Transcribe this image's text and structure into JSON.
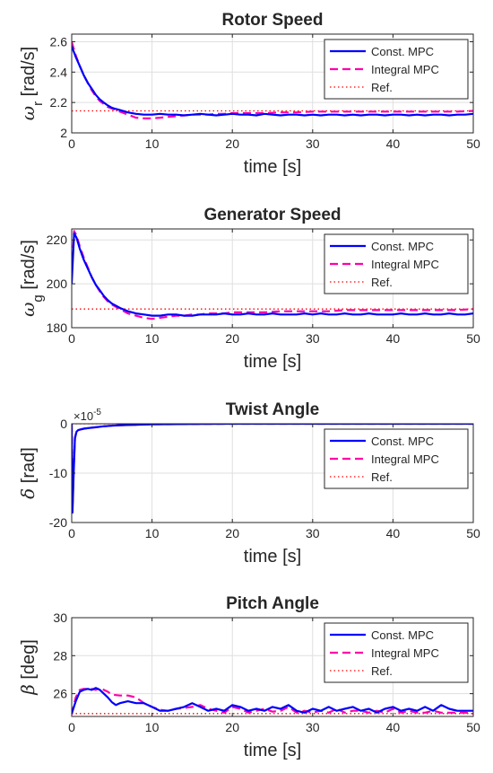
{
  "figure": {
    "background": "#ffffff"
  },
  "chart_data": [
    {
      "type": "line",
      "title": "Rotor Speed",
      "ylabel": "ω_r [rad/s]",
      "ylabel_main": "ω",
      "ylabel_sub": "r",
      "ylabel_unit": "[rad/s]",
      "xlabel": "time [s]",
      "xlim": [
        0,
        50
      ],
      "ylim": [
        2,
        2.65
      ],
      "xticks": [
        0,
        10,
        20,
        30,
        40,
        50
      ],
      "yticks": [
        2,
        2.2,
        2.4,
        2.6
      ],
      "ytick_labels": [
        "2",
        "2.2",
        "2.4",
        "2.6"
      ],
      "grid": true,
      "legend_position": "top-right",
      "series": [
        {
          "name": "Const. MPC",
          "color": "#0000ff",
          "style": "solid",
          "x": [
            0,
            0.5,
            1,
            1.5,
            2,
            2.5,
            3,
            3.5,
            4,
            4.5,
            5,
            6,
            7,
            8,
            9,
            10,
            11,
            12,
            13,
            14,
            15,
            16,
            17,
            18,
            19,
            20,
            21,
            22,
            23,
            24,
            25,
            26,
            27,
            28,
            29,
            30,
            31,
            32,
            33,
            34,
            35,
            36,
            37,
            38,
            39,
            40,
            41,
            42,
            43,
            44,
            45,
            46,
            47,
            48,
            49,
            50
          ],
          "y": [
            2.57,
            2.5,
            2.44,
            2.38,
            2.33,
            2.29,
            2.25,
            2.22,
            2.2,
            2.18,
            2.165,
            2.15,
            2.135,
            2.125,
            2.12,
            2.12,
            2.125,
            2.12,
            2.12,
            2.115,
            2.12,
            2.125,
            2.12,
            2.115,
            2.12,
            2.125,
            2.12,
            2.12,
            2.115,
            2.125,
            2.12,
            2.115,
            2.12,
            2.12,
            2.115,
            2.12,
            2.115,
            2.12,
            2.12,
            2.115,
            2.12,
            2.115,
            2.12,
            2.12,
            2.115,
            2.12,
            2.12,
            2.115,
            2.12,
            2.115,
            2.12,
            2.12,
            2.115,
            2.12,
            2.12,
            2.125
          ]
        },
        {
          "name": "Integral MPC",
          "color": "#ff00aa",
          "style": "dashed",
          "x": [
            0,
            0.5,
            1,
            1.5,
            2,
            2.5,
            3,
            3.5,
            4,
            4.5,
            5,
            6,
            7,
            8,
            9,
            10,
            11,
            12,
            13,
            14,
            15,
            16,
            17,
            18,
            19,
            20,
            22,
            24,
            26,
            28,
            30,
            32,
            34,
            36,
            38,
            40,
            42,
            44,
            46,
            48,
            50
          ],
          "y": [
            2.6,
            2.51,
            2.44,
            2.38,
            2.33,
            2.28,
            2.24,
            2.21,
            2.19,
            2.17,
            2.16,
            2.14,
            2.12,
            2.1,
            2.095,
            2.095,
            2.1,
            2.105,
            2.11,
            2.115,
            2.12,
            2.12,
            2.12,
            2.125,
            2.125,
            2.13,
            2.13,
            2.13,
            2.135,
            2.135,
            2.14,
            2.14,
            2.14,
            2.14,
            2.14,
            2.14,
            2.14,
            2.14,
            2.14,
            2.14,
            2.145
          ]
        },
        {
          "name": "Ref.",
          "color": "#ff0000",
          "style": "dotted",
          "x": [
            0,
            50
          ],
          "y": [
            2.145,
            2.145
          ]
        }
      ]
    },
    {
      "type": "line",
      "title": "Generator Speed",
      "ylabel": "ω_g [rad/s]",
      "ylabel_main": "ω",
      "ylabel_sub": "g",
      "ylabel_unit": "[rad/s]",
      "xlabel": "time [s]",
      "xlim": [
        0,
        50
      ],
      "ylim": [
        180,
        225
      ],
      "xticks": [
        0,
        10,
        20,
        30,
        40,
        50
      ],
      "yticks": [
        180,
        200,
        220
      ],
      "ytick_labels": [
        "180",
        "200",
        "220"
      ],
      "grid": true,
      "legend_position": "top-right",
      "series": [
        {
          "name": "Const. MPC",
          "color": "#0000ff",
          "style": "solid",
          "x": [
            0,
            0.3,
            0.6,
            1,
            1.5,
            2,
            2.5,
            3,
            3.5,
            4,
            4.5,
            5,
            6,
            7,
            8,
            9,
            10,
            11,
            12,
            13,
            14,
            15,
            16,
            17,
            18,
            19,
            20,
            21,
            22,
            23,
            24,
            25,
            26,
            27,
            28,
            29,
            30,
            31,
            32,
            33,
            34,
            35,
            36,
            37,
            38,
            39,
            40,
            41,
            42,
            43,
            44,
            45,
            46,
            47,
            48,
            49,
            50
          ],
          "y": [
            200,
            223,
            221,
            216,
            211,
            207,
            203,
            199.5,
            197,
            194.5,
            192.5,
            191,
            189,
            187.5,
            186.5,
            186,
            185.5,
            185.5,
            186,
            186,
            185.5,
            185.5,
            186,
            186,
            186,
            186.5,
            186,
            186,
            186.5,
            186,
            186,
            186.5,
            186,
            186,
            186,
            186.5,
            186,
            186.5,
            186,
            186,
            186.5,
            186,
            186,
            186.5,
            186,
            186,
            186,
            186.5,
            186,
            186,
            186.5,
            186,
            186,
            186.5,
            186,
            186,
            186.5
          ]
        },
        {
          "name": "Integral MPC",
          "color": "#ff00aa",
          "style": "dashed",
          "x": [
            0,
            0.3,
            0.6,
            1,
            1.5,
            2,
            2.5,
            3,
            3.5,
            4,
            4.5,
            5,
            6,
            7,
            8,
            9,
            10,
            11,
            12,
            13,
            14,
            15,
            16,
            17,
            18,
            19,
            20,
            22,
            24,
            26,
            28,
            30,
            32,
            34,
            36,
            38,
            40,
            42,
            44,
            46,
            48,
            50
          ],
          "y": [
            205,
            224,
            222,
            217,
            212,
            207.5,
            203,
            199.5,
            196.5,
            194,
            192,
            190.5,
            188.5,
            186.5,
            185.5,
            184.5,
            184,
            184.5,
            185,
            185.5,
            185.5,
            186,
            186,
            186.5,
            186.5,
            186.5,
            187,
            187,
            187,
            187.5,
            187.5,
            187.5,
            187.5,
            188,
            188,
            188,
            188,
            188,
            188,
            188,
            188,
            188.5
          ]
        },
        {
          "name": "Ref.",
          "color": "#ff0000",
          "style": "dotted",
          "x": [
            0,
            50
          ],
          "y": [
            188.5,
            188.5
          ]
        }
      ]
    },
    {
      "type": "line",
      "title": "Twist Angle",
      "ylabel": "δ [rad]",
      "ylabel_main": "δ",
      "ylabel_sub": "",
      "ylabel_unit": "[rad]",
      "xlabel": "time [s]",
      "exponent_label": "×10",
      "exponent_power": "-5",
      "xlim": [
        0,
        50
      ],
      "ylim": [
        -20,
        0
      ],
      "xticks": [
        0,
        10,
        20,
        30,
        40,
        50
      ],
      "yticks": [
        -20,
        -10,
        0
      ],
      "ytick_labels": [
        "-20",
        "-10",
        "0"
      ],
      "grid": true,
      "legend_position": "top-right",
      "series": [
        {
          "name": "Const. MPC",
          "color": "#0000ff",
          "style": "solid",
          "x": [
            0,
            0.1,
            0.25,
            0.4,
            0.6,
            0.8,
            1,
            1.5,
            2,
            3,
            4,
            5,
            6,
            8,
            10,
            15,
            20,
            30,
            40,
            50
          ],
          "y": [
            0,
            -18,
            -10,
            -3,
            -1.6,
            -1.3,
            -1.2,
            -1.0,
            -0.9,
            -0.7,
            -0.5,
            -0.4,
            -0.3,
            -0.2,
            -0.1,
            -0.05,
            0,
            0,
            0,
            0
          ]
        },
        {
          "name": "Integral MPC",
          "color": "#ff00aa",
          "style": "dashed",
          "x": [
            0,
            0.1,
            0.25,
            0.4,
            0.6,
            0.8,
            1,
            1.5,
            2,
            3,
            4,
            5,
            6,
            8,
            10,
            15,
            20,
            30,
            40,
            50
          ],
          "y": [
            0,
            -17,
            -9,
            -2.8,
            -1.5,
            -1.3,
            -1.2,
            -1.0,
            -0.9,
            -0.7,
            -0.5,
            -0.4,
            -0.3,
            -0.2,
            -0.1,
            -0.05,
            0,
            0,
            0,
            0
          ]
        },
        {
          "name": "Ref.",
          "color": "#ff0000",
          "style": "dotted",
          "x": [
            0,
            50
          ],
          "y": [
            0,
            0
          ]
        }
      ]
    },
    {
      "type": "line",
      "title": "Pitch Angle",
      "ylabel": "β [deg]",
      "ylabel_main": "β",
      "ylabel_sub": "",
      "ylabel_unit": "[deg]",
      "xlabel": "time [s]",
      "xlim": [
        0,
        50
      ],
      "ylim": [
        24.8,
        30
      ],
      "xticks": [
        0,
        10,
        20,
        30,
        40,
        50
      ],
      "yticks": [
        26,
        28,
        30
      ],
      "ytick_labels": [
        "26",
        "28",
        "30"
      ],
      "grid": true,
      "legend_position": "top-right",
      "series": [
        {
          "name": "Const. MPC",
          "color": "#0000ff",
          "style": "solid",
          "x": [
            0,
            0.5,
            1,
            1.5,
            2,
            2.5,
            3,
            3.5,
            4,
            4.5,
            5,
            5.5,
            6,
            7,
            8,
            9,
            10,
            11,
            12,
            13,
            14,
            15,
            16,
            17,
            18,
            19,
            20,
            21,
            22,
            23,
            24,
            25,
            26,
            27,
            28,
            29,
            30,
            31,
            32,
            33,
            34,
            35,
            36,
            37,
            38,
            39,
            40,
            41,
            42,
            43,
            44,
            45,
            46,
            47,
            48,
            49,
            50
          ],
          "y": [
            24.95,
            25.6,
            26.1,
            26.2,
            26.25,
            26.2,
            26.3,
            26.2,
            26.0,
            25.8,
            25.55,
            25.4,
            25.5,
            25.6,
            25.5,
            25.5,
            25.3,
            25.1,
            25.1,
            25.2,
            25.3,
            25.5,
            25.3,
            25.1,
            25.2,
            25.1,
            25.4,
            25.3,
            25.1,
            25.2,
            25.1,
            25.3,
            25.2,
            25.4,
            25.1,
            25.0,
            25.2,
            25.1,
            25.3,
            25.1,
            25.2,
            25.3,
            25.1,
            25.2,
            25.0,
            25.2,
            25.3,
            25.1,
            25.2,
            25.1,
            25.3,
            25.1,
            25.4,
            25.2,
            25.1,
            25.1,
            25.1
          ]
        },
        {
          "name": "Integral MPC",
          "color": "#ff00aa",
          "style": "dashed",
          "x": [
            0,
            0.5,
            1,
            1.5,
            2,
            2.5,
            3,
            3.5,
            4,
            4.5,
            5,
            6,
            7,
            8,
            9,
            10,
            11,
            12,
            13,
            14,
            15,
            16,
            17,
            18,
            19,
            20,
            21,
            22,
            23,
            24,
            25,
            26,
            27,
            28,
            29,
            30,
            31,
            32,
            33,
            34,
            35,
            36,
            37,
            38,
            39,
            40,
            41,
            42,
            43,
            44,
            45,
            46,
            47,
            48,
            49,
            50
          ],
          "y": [
            24.9,
            25.8,
            26.2,
            26.25,
            26.25,
            26.25,
            26.2,
            26.3,
            26.2,
            26.1,
            25.95,
            25.9,
            25.9,
            25.8,
            25.5,
            25.3,
            25.15,
            25.1,
            25.2,
            25.25,
            25.3,
            25.4,
            25.2,
            25.1,
            25.0,
            25.3,
            25.2,
            25.0,
            25.1,
            25.2,
            25.05,
            25.1,
            25.3,
            25.0,
            25.1,
            25.0,
            25.1,
            25.0,
            25.2,
            25.0,
            25.1,
            25.1,
            25.0,
            25.1,
            25.0,
            25.2,
            25.0,
            25.1,
            25.0,
            25.0,
            25.1,
            25.0,
            25.0,
            25.0,
            25.0,
            24.95
          ]
        },
        {
          "name": "Ref.",
          "color": "#ff0000",
          "style": "dotted",
          "x": [
            0,
            50
          ],
          "y": [
            24.95,
            24.95
          ]
        }
      ]
    }
  ]
}
